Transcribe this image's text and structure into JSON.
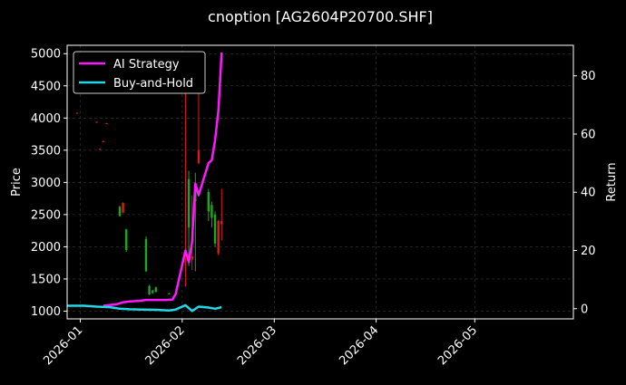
{
  "chart_data": {
    "type": "candlestick+line",
    "title": "cnoption [AG2604P20700.SHF]",
    "xlabel": "",
    "ylabel": "Price",
    "ylabel_right": "Return",
    "xlim": [
      "2025-12-28",
      "2026-05-31"
    ],
    "ylim": [
      880,
      5130
    ],
    "ylim_right": [
      -3.5,
      90.5
    ],
    "x_ticks": [
      "2026-01-01",
      "2026-02-01",
      "2026-03-01",
      "2026-04-01",
      "2026-05-01"
    ],
    "x_tick_labels": [
      "2026-01",
      "2026-02",
      "2026-03",
      "2026-04",
      "2026-05"
    ],
    "y_ticks": [
      1000,
      1500,
      2000,
      2500,
      3000,
      3500,
      4000,
      4500,
      5000
    ],
    "y_ticks_right": [
      0,
      20,
      40,
      60,
      80
    ],
    "grid": true,
    "legend_position": "top-left",
    "colors": {
      "background": "#000000",
      "up": "#1fa51f",
      "down": "#e01a1a",
      "ai_strategy": "#ff19ff",
      "buy_hold": "#22d8e8",
      "grid": "#3a3a3a"
    },
    "candles": [
      {
        "date": "2025-12-31",
        "open": 4080,
        "high": 4085,
        "low": 4070,
        "close": 4075
      },
      {
        "date": "2026-01-06",
        "open": 3940,
        "high": 3945,
        "low": 3935,
        "close": 3938
      },
      {
        "date": "2026-01-07",
        "open": 3520,
        "high": 3525,
        "low": 3515,
        "close": 3518
      },
      {
        "date": "2026-01-08",
        "open": 3640,
        "high": 3650,
        "low": 3630,
        "close": 3635
      },
      {
        "date": "2026-01-09",
        "open": 3920,
        "high": 3925,
        "low": 3910,
        "close": 3915
      },
      {
        "date": "2026-01-13",
        "open": 2480,
        "high": 2640,
        "low": 2470,
        "close": 2620
      },
      {
        "date": "2026-01-14",
        "open": 2680,
        "high": 2690,
        "low": 2520,
        "close": 2530
      },
      {
        "date": "2026-01-15",
        "open": 1950,
        "high": 2280,
        "low": 1920,
        "close": 2270
      },
      {
        "date": "2026-01-21",
        "open": 1620,
        "high": 2160,
        "low": 1610,
        "close": 2120
      },
      {
        "date": "2026-01-22",
        "open": 1260,
        "high": 1410,
        "low": 1250,
        "close": 1390
      },
      {
        "date": "2026-01-23",
        "open": 1280,
        "high": 1330,
        "low": 1270,
        "close": 1320
      },
      {
        "date": "2026-01-24",
        "open": 1300,
        "high": 1380,
        "low": 1290,
        "close": 1370
      },
      {
        "date": "2026-01-28",
        "open": 1270,
        "high": 1285,
        "low": 1265,
        "close": 1272
      },
      {
        "date": "2026-02-02",
        "open": 1730,
        "high": 4950,
        "low": 1380,
        "close": 1720
      },
      {
        "date": "2026-02-03",
        "open": 2300,
        "high": 3180,
        "low": 1700,
        "close": 3050
      },
      {
        "date": "2026-02-04",
        "open": 1850,
        "high": 2800,
        "low": 1640,
        "close": 1800
      },
      {
        "date": "2026-02-05",
        "open": 2700,
        "high": 3150,
        "low": 1620,
        "close": 2900
      },
      {
        "date": "2026-02-06",
        "open": 3500,
        "high": 4500,
        "low": 3280,
        "close": 3300
      },
      {
        "date": "2026-02-09",
        "open": 2550,
        "high": 2900,
        "low": 2400,
        "close": 2850
      },
      {
        "date": "2026-02-10",
        "open": 2450,
        "high": 2700,
        "low": 2300,
        "close": 2650
      },
      {
        "date": "2026-02-11",
        "open": 2050,
        "high": 2550,
        "low": 2000,
        "close": 2500
      },
      {
        "date": "2026-02-12",
        "open": 2400,
        "high": 2420,
        "low": 1870,
        "close": 1900
      },
      {
        "date": "2026-02-13",
        "open": 2400,
        "high": 2900,
        "low": 2100,
        "close": 2350
      }
    ],
    "series": [
      {
        "name": "AI Strategy",
        "axis": "right",
        "points": [
          [
            "2026-01-08",
            1.0
          ],
          [
            "2026-01-12",
            1.5
          ],
          [
            "2026-01-14",
            2.2
          ],
          [
            "2026-01-16",
            2.5
          ],
          [
            "2026-01-19",
            2.7
          ],
          [
            "2026-01-21",
            3.0
          ],
          [
            "2026-01-23",
            3.0
          ],
          [
            "2026-01-27",
            3.0
          ],
          [
            "2026-01-29",
            3.1
          ],
          [
            "2026-01-30",
            5.0
          ],
          [
            "2026-02-02",
            20.0
          ],
          [
            "2026-02-03",
            16.0
          ],
          [
            "2026-02-04",
            23.0
          ],
          [
            "2026-02-05",
            43.0
          ],
          [
            "2026-02-06",
            39.0
          ],
          [
            "2026-02-09",
            50.0
          ],
          [
            "2026-02-10",
            51.0
          ],
          [
            "2026-02-11",
            58.0
          ],
          [
            "2026-02-12",
            68.0
          ],
          [
            "2026-02-13",
            88.0
          ]
        ]
      },
      {
        "name": "Buy-and-Hold",
        "axis": "right",
        "points": [
          [
            "2025-12-28",
            1.0
          ],
          [
            "2026-01-02",
            1.0
          ],
          [
            "2026-01-06",
            0.7
          ],
          [
            "2026-01-10",
            0.5
          ],
          [
            "2026-01-13",
            0.0
          ],
          [
            "2026-01-16",
            -0.2
          ],
          [
            "2026-01-20",
            -0.3
          ],
          [
            "2026-01-24",
            -0.4
          ],
          [
            "2026-01-28",
            -0.6
          ],
          [
            "2026-01-30",
            -0.3
          ],
          [
            "2026-02-02",
            1.2
          ],
          [
            "2026-02-04",
            -0.8
          ],
          [
            "2026-02-06",
            0.7
          ],
          [
            "2026-02-09",
            0.4
          ],
          [
            "2026-02-11",
            0.0
          ],
          [
            "2026-02-13",
            0.5
          ]
        ]
      }
    ]
  }
}
